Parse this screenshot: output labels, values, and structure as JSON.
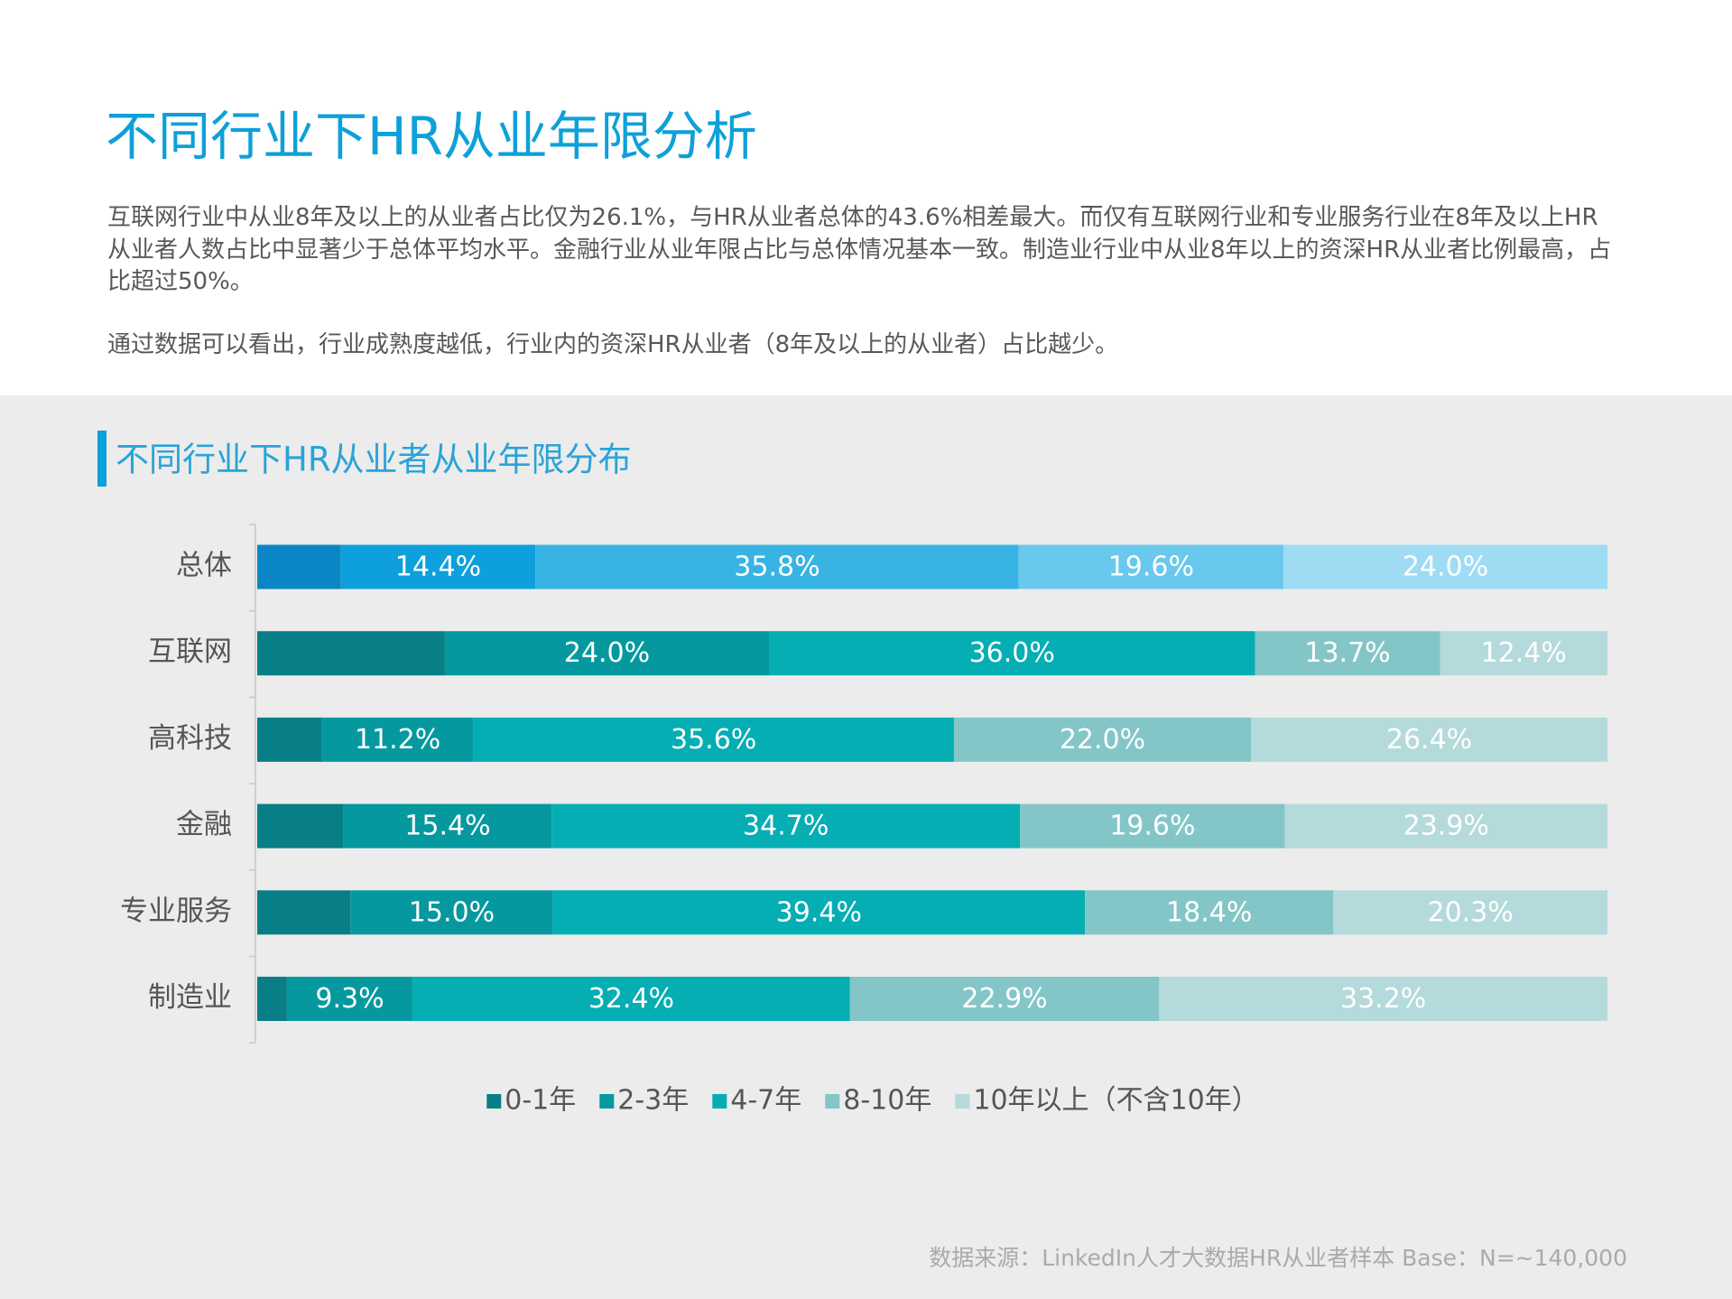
{
  "title": "不同行业下HR从业年限分析",
  "paragraphs": [
    "互联网行业中从业8年及以上的从业者占比仅为26.1%，与HR从业者总体的43.6%相差最大。而仅有互联网行业和专业服务行业在8年及以上HR从业者人数占比中显著少于总体平均水平。金融行业从业年限占比与总体情况基本一致。制造业行业中从业8年以上的资深HR从业者比例最高，占比超过50%。",
    "通过数据可以看出，行业成熟度越低，行业内的资深HR从业者（8年及以上的从业者）占比越少。"
  ],
  "chart_data": {
    "type": "stacked-bar-horizontal",
    "title": "不同行业下HR从业者从业年限分布",
    "categories": [
      "总体",
      "互联网",
      "高科技",
      "金融",
      "专业服务",
      "制造业"
    ],
    "xlim": [
      0,
      100
    ],
    "series": [
      {
        "name": "0-1年",
        "color": "#087f86",
        "values": [
          6.2,
          13.9,
          4.8,
          6.4,
          6.9,
          2.2
        ]
      },
      {
        "name": "2-3年",
        "color": "#05999f",
        "values": [
          14.4,
          24.0,
          11.2,
          15.4,
          15.0,
          9.3
        ],
        "value_labels": [
          "14.4%",
          "24.0%",
          "11.2%",
          "15.4%",
          "15.0%",
          "9.3%"
        ]
      },
      {
        "name": "4-7年",
        "color": "#04aeb3",
        "values": [
          35.8,
          36.0,
          35.6,
          34.7,
          39.4,
          32.4
        ],
        "value_labels": [
          "35.8%",
          "36.0%",
          "35.6%",
          "34.7%",
          "39.4%",
          "32.4%"
        ]
      },
      {
        "name": "8-10年",
        "color": "#84c6c7",
        "values": [
          19.6,
          13.7,
          22.0,
          19.6,
          18.4,
          22.9
        ],
        "value_labels": [
          "19.6%",
          "13.7%",
          "22.0%",
          "19.6%",
          "18.4%",
          "22.9%"
        ]
      },
      {
        "name": "10年以上（不含10年）",
        "color": "#b5dadb",
        "values": [
          24.0,
          12.4,
          26.4,
          23.9,
          20.3,
          33.2
        ],
        "value_labels": [
          "24.0%",
          "12.4%",
          "26.4%",
          "23.9%",
          "20.3%",
          "33.2%"
        ]
      }
    ],
    "first_row_colors": [
      "#0a86c6",
      "#0ea0dc",
      "#37b4e4",
      "#6ac8ed",
      "#9fdcf4"
    ],
    "legend": "bottom"
  },
  "source": "数据来源：LinkedIn人才大数据HR从业者样本  Base：N=~140,000"
}
